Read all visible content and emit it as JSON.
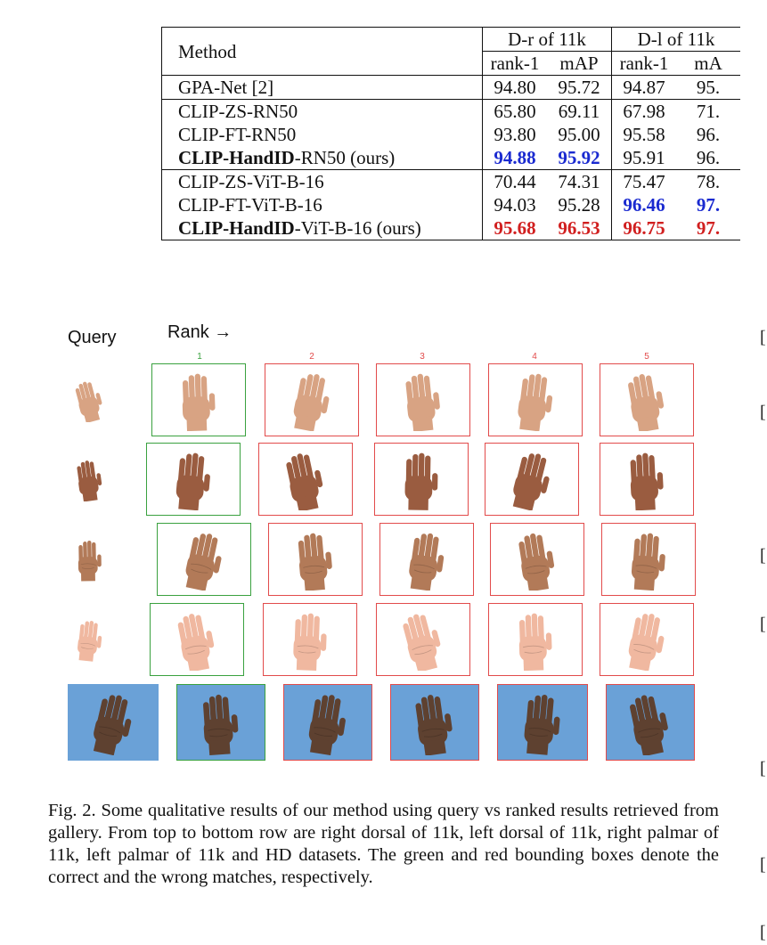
{
  "table": {
    "header": {
      "method": "Method",
      "group1": "D-r of 11k",
      "group2": "D-l of 11k",
      "sub": [
        "rank-1",
        "mAP",
        "rank-1",
        "mA"
      ]
    },
    "rows": [
      {
        "method": "GPA-Net [2]",
        "bold_prefix": "",
        "suffix": "",
        "v": [
          "94.80",
          "95.72",
          "94.87",
          "95."
        ],
        "style": [
          "",
          "",
          "",
          ""
        ]
      },
      {
        "method": "CLIP-ZS-RN50",
        "bold_prefix": "",
        "suffix": "",
        "v": [
          "65.80",
          "69.11",
          "67.98",
          "71."
        ],
        "style": [
          "",
          "",
          "",
          ""
        ]
      },
      {
        "method": "CLIP-FT-RN50",
        "bold_prefix": "",
        "suffix": "",
        "v": [
          "93.80",
          "95.00",
          "95.58",
          "96."
        ],
        "style": [
          "",
          "",
          "",
          ""
        ]
      },
      {
        "method": "",
        "bold_prefix": "CLIP-HandID",
        "suffix": "-RN50 (ours)",
        "v": [
          "94.88",
          "95.92",
          "95.91",
          "96."
        ],
        "style": [
          "blue",
          "blue",
          "",
          ""
        ]
      },
      {
        "method": "CLIP-ZS-ViT-B-16",
        "bold_prefix": "",
        "suffix": "",
        "v": [
          "70.44",
          "74.31",
          "75.47",
          "78."
        ],
        "style": [
          "",
          "",
          "",
          ""
        ]
      },
      {
        "method": "CLIP-FT-ViT-B-16",
        "bold_prefix": "",
        "suffix": "",
        "v": [
          "94.03",
          "95.28",
          "96.46",
          "97."
        ],
        "style": [
          "",
          "",
          "blue",
          "blue"
        ]
      },
      {
        "method": "",
        "bold_prefix": "CLIP-HandID",
        "suffix": "-ViT-B-16 (ours)",
        "v": [
          "95.68",
          "96.53",
          "96.75",
          "97."
        ],
        "style": [
          "red",
          "red",
          "red",
          "red"
        ]
      }
    ]
  },
  "figure": {
    "query_label": "Query",
    "rank_label": "Rank →",
    "rank_numbers": [
      "1",
      "2",
      "3",
      "4",
      "5"
    ],
    "rows": [
      {
        "name": "right dorsal of 11k",
        "tone": "#d8a383",
        "results": [
          "correct",
          "wrong",
          "wrong",
          "wrong",
          "wrong"
        ]
      },
      {
        "name": "left dorsal of 11k",
        "tone": "#9a5c40",
        "results": [
          "correct",
          "wrong",
          "wrong",
          "wrong",
          "wrong"
        ]
      },
      {
        "name": "right palmar of 11k",
        "tone": "#b27a58",
        "results": [
          "correct",
          "wrong",
          "wrong",
          "wrong",
          "wrong"
        ]
      },
      {
        "name": "left palmar of 11k",
        "tone": "#f0b8a0",
        "results": [
          "correct",
          "wrong",
          "wrong",
          "wrong",
          "wrong"
        ]
      },
      {
        "name": "HD",
        "tone": "#5e4130",
        "results": [
          "correct",
          "wrong",
          "wrong",
          "wrong",
          "wrong"
        ]
      }
    ],
    "colors": {
      "correct": "#3aa13f",
      "wrong": "#e24b4b",
      "hd_background": "#6aa1d7"
    }
  },
  "caption": "Fig. 2.  Some qualitative results of our method using query vs ranked results retrieved from gallery. From top to bottom row are right dorsal of 11k, left dorsal of 11k, right palmar of 11k, left palmar of 11k and HD datasets. The green and red bounding boxes denote the correct and the wrong matches, respectively.",
  "margin_brackets": [
    "[",
    "[",
    "[",
    "[",
    "[",
    "[",
    "["
  ]
}
